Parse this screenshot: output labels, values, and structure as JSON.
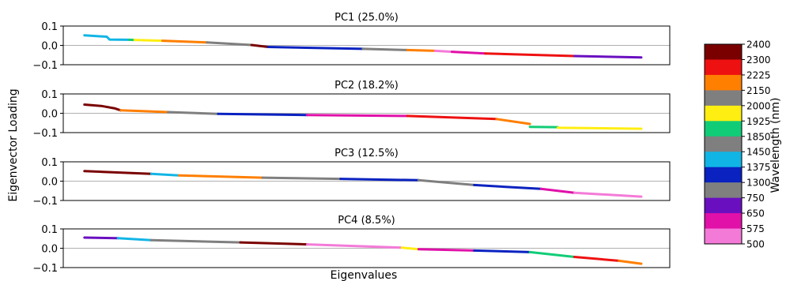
{
  "figure": {
    "ylabel": "Eigenvector Loading",
    "xlabel": "Eigenvalues",
    "colorbar_label": "Wavelength (nm)"
  },
  "colorbar": {
    "ticks": [
      "2400",
      "2300",
      "2225",
      "2150",
      "2000",
      "1925",
      "1850",
      "1450",
      "1375",
      "1300",
      "750",
      "650",
      "575",
      "500"
    ],
    "colors": [
      "#7a0000",
      "#ee1111",
      "#ff7f00",
      "#7f7f7f",
      "#ffee11",
      "#11cc77",
      "#7f7f7f",
      "#11b5e5",
      "#0a22c0",
      "#7f7f7f",
      "#6a0fc0",
      "#e010a8",
      "#f47ad8"
    ]
  },
  "chart_data": [
    {
      "type": "line",
      "title": "PC1 (25.0%)",
      "ylim": [
        -0.1,
        0.1
      ],
      "yticks": [
        "0.1",
        "0.0",
        "−0.1"
      ],
      "grid": "horizontal at y=0",
      "series": [
        {
          "x": [
            0.0,
            0.04,
            0.045,
            0.08
          ],
          "y": [
            0.052,
            0.045,
            0.03,
            0.029
          ],
          "color": "#11b5e5"
        },
        {
          "x": [
            0.08,
            0.09
          ],
          "y": [
            0.029,
            0.028
          ],
          "color": "#11cc77"
        },
        {
          "x": [
            0.09,
            0.14
          ],
          "y": [
            0.028,
            0.024
          ],
          "color": "#ffee11"
        },
        {
          "x": [
            0.14,
            0.22
          ],
          "y": [
            0.024,
            0.015
          ],
          "color": "#ff7f00"
        },
        {
          "x": [
            0.22,
            0.3
          ],
          "y": [
            0.015,
            0.002
          ],
          "color": "#7f7f7f"
        },
        {
          "x": [
            0.3,
            0.33
          ],
          "y": [
            0.002,
            -0.008
          ],
          "color": "#7a0000"
        },
        {
          "x": [
            0.33,
            0.5
          ],
          "y": [
            -0.008,
            -0.018
          ],
          "color": "#0a22c0"
        },
        {
          "x": [
            0.5,
            0.58
          ],
          "y": [
            -0.018,
            -0.024
          ],
          "color": "#7f7f7f"
        },
        {
          "x": [
            0.58,
            0.63
          ],
          "y": [
            -0.024,
            -0.028
          ],
          "color": "#ff7f00"
        },
        {
          "x": [
            0.63,
            0.66
          ],
          "y": [
            -0.028,
            -0.033
          ],
          "color": "#f47ad8"
        },
        {
          "x": [
            0.66,
            0.72
          ],
          "y": [
            -0.033,
            -0.042
          ],
          "color": "#e010a8"
        },
        {
          "x": [
            0.72,
            0.88
          ],
          "y": [
            -0.042,
            -0.055
          ],
          "color": "#ee1111"
        },
        {
          "x": [
            0.88,
            1.0
          ],
          "y": [
            -0.055,
            -0.062
          ],
          "color": "#6a0fc0"
        }
      ]
    },
    {
      "type": "line",
      "title": "PC2 (18.2%)",
      "ylim": [
        -0.1,
        0.1
      ],
      "yticks": [
        "0.1",
        "0.0",
        "−0.1"
      ],
      "grid": "horizontal at y=0",
      "series": [
        {
          "x": [
            0.0,
            0.03,
            0.055,
            0.065
          ],
          "y": [
            0.045,
            0.038,
            0.025,
            0.015
          ],
          "color": "#7a0000"
        },
        {
          "x": [
            0.065,
            0.15
          ],
          "y": [
            0.015,
            0.006
          ],
          "color": "#ff7f00"
        },
        {
          "x": [
            0.15,
            0.24
          ],
          "y": [
            0.006,
            -0.003
          ],
          "color": "#7f7f7f"
        },
        {
          "x": [
            0.24,
            0.4
          ],
          "y": [
            -0.003,
            -0.009
          ],
          "color": "#0a22c0"
        },
        {
          "x": [
            0.4,
            0.58
          ],
          "y": [
            -0.009,
            -0.014
          ],
          "color": "#e010a8"
        },
        {
          "x": [
            0.58,
            0.74
          ],
          "y": [
            -0.014,
            -0.03
          ],
          "color": "#ee1111"
        },
        {
          "x": [
            0.74,
            0.8
          ],
          "y": [
            -0.03,
            -0.055
          ],
          "color": "#ff7f00"
        },
        {
          "x": [
            0.8,
            0.85
          ],
          "y": [
            -0.07,
            -0.072
          ],
          "color": "#11cc77"
        },
        {
          "x": [
            0.85,
            1.0
          ],
          "y": [
            -0.075,
            -0.08
          ],
          "color": "#ffee11"
        }
      ]
    },
    {
      "type": "line",
      "title": "PC3 (12.5%)",
      "ylim": [
        -0.1,
        0.1
      ],
      "yticks": [
        "0.1",
        "0.0",
        "−0.1"
      ],
      "grid": "horizontal at y=0",
      "series": [
        {
          "x": [
            0.0,
            0.12
          ],
          "y": [
            0.052,
            0.038
          ],
          "color": "#7a0000"
        },
        {
          "x": [
            0.12,
            0.17
          ],
          "y": [
            0.038,
            0.03
          ],
          "color": "#11b5e5"
        },
        {
          "x": [
            0.17,
            0.32
          ],
          "y": [
            0.03,
            0.018
          ],
          "color": "#ff7f00"
        },
        {
          "x": [
            0.32,
            0.46
          ],
          "y": [
            0.018,
            0.012
          ],
          "color": "#7f7f7f"
        },
        {
          "x": [
            0.46,
            0.6
          ],
          "y": [
            0.012,
            0.005
          ],
          "color": "#0a22c0"
        },
        {
          "x": [
            0.6,
            0.7
          ],
          "y": [
            0.005,
            -0.02
          ],
          "color": "#7f7f7f"
        },
        {
          "x": [
            0.7,
            0.82
          ],
          "y": [
            -0.02,
            -0.04
          ],
          "color": "#0a22c0"
        },
        {
          "x": [
            0.82,
            0.88
          ],
          "y": [
            -0.04,
            -0.06
          ],
          "color": "#e010a8"
        },
        {
          "x": [
            0.88,
            1.0
          ],
          "y": [
            -0.06,
            -0.08
          ],
          "color": "#f47ad8"
        }
      ]
    },
    {
      "type": "line",
      "title": "PC4 (8.5%)",
      "ylim": [
        -0.1,
        0.1
      ],
      "yticks": [
        "0.1",
        "0.0",
        "−0.1"
      ],
      "grid": "horizontal at y=0",
      "series": [
        {
          "x": [
            0.0,
            0.06
          ],
          "y": [
            0.055,
            0.052
          ],
          "color": "#6a0fc0"
        },
        {
          "x": [
            0.06,
            0.12
          ],
          "y": [
            0.052,
            0.042
          ],
          "color": "#11b5e5"
        },
        {
          "x": [
            0.12,
            0.28
          ],
          "y": [
            0.042,
            0.03
          ],
          "color": "#7f7f7f"
        },
        {
          "x": [
            0.28,
            0.4
          ],
          "y": [
            0.03,
            0.02
          ],
          "color": "#7a0000"
        },
        {
          "x": [
            0.4,
            0.57
          ],
          "y": [
            0.02,
            0.003
          ],
          "color": "#f47ad8"
        },
        {
          "x": [
            0.57,
            0.6
          ],
          "y": [
            0.003,
            -0.005
          ],
          "color": "#ffee11"
        },
        {
          "x": [
            0.6,
            0.7
          ],
          "y": [
            -0.005,
            -0.012
          ],
          "color": "#e010a8"
        },
        {
          "x": [
            0.7,
            0.8
          ],
          "y": [
            -0.012,
            -0.02
          ],
          "color": "#0a22c0"
        },
        {
          "x": [
            0.8,
            0.88
          ],
          "y": [
            -0.02,
            -0.045
          ],
          "color": "#11cc77"
        },
        {
          "x": [
            0.88,
            0.96
          ],
          "y": [
            -0.045,
            -0.065
          ],
          "color": "#ee1111"
        },
        {
          "x": [
            0.96,
            1.0
          ],
          "y": [
            -0.065,
            -0.08
          ],
          "color": "#ff7f00"
        }
      ]
    }
  ]
}
